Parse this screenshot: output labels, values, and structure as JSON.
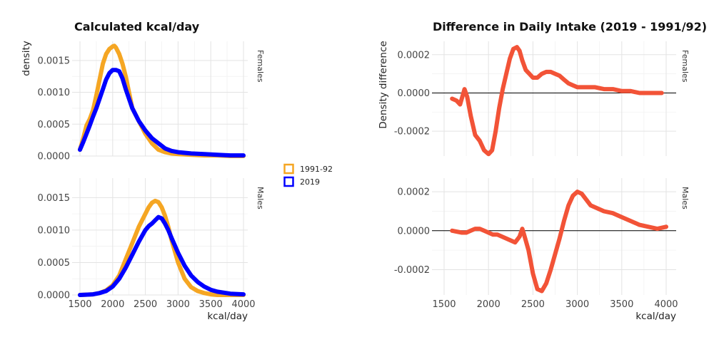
{
  "colors": {
    "y1991": "#f5a623",
    "y2019": "#0000ff",
    "difference": "#f25337",
    "zero_line": "#000000",
    "grid": "#e3e3e3"
  },
  "chart_data": [
    {
      "type": "line",
      "title": "Calculated kcal/day",
      "xlabel": "kcal/day",
      "ylabel": "density",
      "xlim": [
        1500,
        4000
      ],
      "xticks": [
        1500,
        2000,
        2500,
        3000,
        3500,
        4000
      ],
      "ylim": [
        0,
        0.0018
      ],
      "yticks": [
        0.0,
        0.0005,
        0.001,
        0.0015
      ],
      "ytick_labels": [
        "0.0000",
        "0.0005",
        "0.0010",
        "0.0015"
      ],
      "legend": {
        "placement": "right",
        "entries": [
          "1991-92",
          "2019"
        ]
      },
      "panels": [
        {
          "facet": "Females",
          "series": [
            {
              "name": "1991-92",
              "x": [
                1500,
                1550,
                1600,
                1650,
                1700,
                1750,
                1800,
                1850,
                1900,
                1950,
                2000,
                2025,
                2050,
                2100,
                2150,
                2200,
                2250,
                2300,
                2400,
                2500,
                2600,
                2700,
                2800,
                2900,
                3000,
                3200,
                3400,
                3600,
                3800,
                4000
              ],
              "y": [
                0.0001,
                0.00028,
                0.00048,
                0.00058,
                0.00072,
                0.00095,
                0.0012,
                0.00145,
                0.0016,
                0.00168,
                0.00172,
                0.00173,
                0.0017,
                0.0016,
                0.00145,
                0.00125,
                0.001,
                0.00075,
                0.00055,
                0.00035,
                0.0002,
                0.0001,
                6e-05,
                4e-05,
                3e-05,
                2e-05,
                1e-05,
                1e-05,
                0.0,
                0.0
              ]
            },
            {
              "name": "2019",
              "x": [
                1500,
                1550,
                1600,
                1650,
                1700,
                1750,
                1800,
                1850,
                1900,
                1950,
                2000,
                2050,
                2100,
                2150,
                2200,
                2250,
                2300,
                2400,
                2500,
                2600,
                2700,
                2800,
                2900,
                3000,
                3200,
                3400,
                3600,
                3800,
                4000
              ],
              "y": [
                0.0001,
                0.00022,
                0.00035,
                0.00048,
                0.00062,
                0.00075,
                0.0009,
                0.00105,
                0.0012,
                0.0013,
                0.00135,
                0.00135,
                0.00133,
                0.00122,
                0.00105,
                0.0009,
                0.00075,
                0.00055,
                0.0004,
                0.00028,
                0.0002,
                0.00012,
                8e-05,
                6e-05,
                4e-05,
                3e-05,
                2e-05,
                1e-05,
                1e-05
              ]
            }
          ]
        },
        {
          "facet": "Males",
          "series": [
            {
              "name": "1991-92",
              "x": [
                1500,
                1700,
                1800,
                1900,
                2000,
                2100,
                2200,
                2300,
                2400,
                2500,
                2550,
                2600,
                2650,
                2700,
                2750,
                2800,
                2850,
                2900,
                3000,
                3100,
                3200,
                3300,
                3400,
                3500,
                3600,
                3800,
                4000
              ],
              "y": [
                0.0,
                1e-05,
                3e-05,
                7e-05,
                0.00015,
                0.0003,
                0.00055,
                0.0008,
                0.00105,
                0.00125,
                0.00135,
                0.00142,
                0.00145,
                0.00143,
                0.00135,
                0.00122,
                0.00105,
                0.00085,
                0.0005,
                0.00025,
                0.00012,
                6e-05,
                3e-05,
                1e-05,
                0.0,
                0.0,
                0.0
              ]
            },
            {
              "name": "2019",
              "x": [
                1500,
                1700,
                1800,
                1900,
                2000,
                2100,
                2200,
                2300,
                2400,
                2500,
                2550,
                2600,
                2650,
                2700,
                2750,
                2800,
                2850,
                2900,
                3000,
                3100,
                3200,
                3300,
                3400,
                3500,
                3600,
                3800,
                4000
              ],
              "y": [
                0.0,
                1e-05,
                3e-05,
                6e-05,
                0.00013,
                0.00025,
                0.00042,
                0.00062,
                0.00082,
                0.001,
                0.00106,
                0.0011,
                0.00115,
                0.0012,
                0.00118,
                0.0011,
                0.001,
                0.00088,
                0.00065,
                0.00045,
                0.0003,
                0.0002,
                0.00013,
                8e-05,
                5e-05,
                2e-05,
                1e-05
              ]
            }
          ]
        }
      ]
    },
    {
      "type": "line",
      "title": "Difference in Daily Intake (2019 - 1991/92)",
      "xlabel": "kcal/day",
      "ylabel": "Density difference",
      "xlim": [
        1500,
        4000
      ],
      "xticks": [
        1500,
        2000,
        2500,
        3000,
        3500,
        4000
      ],
      "ylim": [
        -0.00033,
        0.00027
      ],
      "yticks": [
        -0.0002,
        0.0,
        0.0002
      ],
      "ytick_labels": [
        "-0.0002",
        "0.0000",
        "0.0002"
      ],
      "reference_line": 0,
      "panels": [
        {
          "facet": "Females",
          "series": [
            {
              "x": [
                1590,
                1640,
                1680,
                1730,
                1760,
                1800,
                1850,
                1900,
                1950,
                2000,
                2040,
                2080,
                2120,
                2160,
                2200,
                2240,
                2280,
                2320,
                2350,
                2380,
                2420,
                2460,
                2500,
                2550,
                2600,
                2650,
                2700,
                2750,
                2800,
                2850,
                2900,
                2950,
                3000,
                3100,
                3200,
                3300,
                3400,
                3500,
                3600,
                3700,
                3800,
                3900,
                3950
              ],
              "y": [
                -3e-05,
                -4e-05,
                -6e-05,
                2e-05,
                -2e-05,
                -0.00012,
                -0.00022,
                -0.00025,
                -0.0003,
                -0.00032,
                -0.0003,
                -0.0002,
                -8e-05,
                2e-05,
                0.0001,
                0.00018,
                0.00023,
                0.00024,
                0.00022,
                0.00017,
                0.00012,
                0.0001,
                8e-05,
                8e-05,
                0.0001,
                0.00011,
                0.00011,
                0.0001,
                9e-05,
                7e-05,
                5e-05,
                4e-05,
                3e-05,
                3e-05,
                3e-05,
                2e-05,
                2e-05,
                1e-05,
                1e-05,
                0.0,
                0.0,
                0.0,
                0.0
              ]
            }
          ]
        },
        {
          "facet": "Males",
          "series": [
            {
              "x": [
                1590,
                1700,
                1750,
                1800,
                1850,
                1900,
                1950,
                2000,
                2050,
                2100,
                2150,
                2200,
                2250,
                2300,
                2350,
                2380,
                2400,
                2450,
                2500,
                2550,
                2600,
                2650,
                2700,
                2750,
                2800,
                2850,
                2900,
                2950,
                3000,
                3050,
                3100,
                3150,
                3200,
                3300,
                3400,
                3500,
                3600,
                3700,
                3800,
                3900,
                4000
              ],
              "y": [
                0.0,
                -1e-05,
                -1e-05,
                0.0,
                1e-05,
                1e-05,
                0.0,
                -1e-05,
                -2e-05,
                -2e-05,
                -3e-05,
                -4e-05,
                -5e-05,
                -6e-05,
                -3e-05,
                1e-05,
                -2e-05,
                -0.0001,
                -0.00022,
                -0.0003,
                -0.00031,
                -0.00027,
                -0.0002,
                -0.00012,
                -4e-05,
                5e-05,
                0.00013,
                0.00018,
                0.0002,
                0.00019,
                0.00016,
                0.00013,
                0.00012,
                0.0001,
                9e-05,
                7e-05,
                5e-05,
                3e-05,
                2e-05,
                1e-05,
                2e-05
              ]
            }
          ]
        }
      ]
    }
  ]
}
